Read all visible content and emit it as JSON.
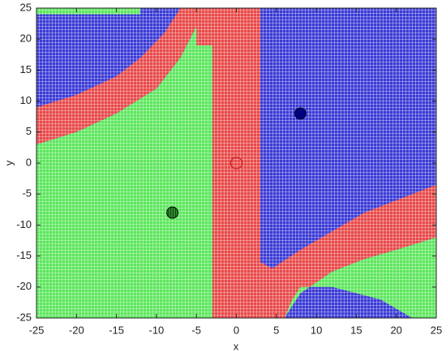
{
  "chart_data": {
    "type": "scatter",
    "xlabel": "x",
    "ylabel": "y",
    "xlim": [
      -25,
      25
    ],
    "ylim": [
      -25,
      25
    ],
    "xticks": [
      -25,
      -20,
      -15,
      -10,
      -5,
      0,
      5,
      10,
      15,
      20,
      25
    ],
    "yticks": [
      -25,
      -20,
      -15,
      -10,
      -5,
      0,
      5,
      10,
      15,
      20,
      25
    ],
    "regions": [
      {
        "color": "#3a3ad6",
        "x": [
          -25,
          25,
          25,
          -25
        ],
        "y": [
          -25,
          -25,
          25,
          25
        ]
      },
      {
        "color": "#e84848",
        "x": [
          -25,
          -20,
          -15,
          -12,
          -9,
          -7,
          -4,
          -5,
          -7,
          -10,
          -15,
          -20,
          -25
        ],
        "y": [
          9,
          11,
          14,
          17,
          21,
          25,
          25,
          22,
          17,
          12,
          8,
          5,
          3
        ]
      },
      {
        "color": "#5ce65c",
        "x": [
          -25,
          -20,
          -15,
          -10,
          -7,
          -5,
          -4,
          -3,
          -3,
          -25
        ],
        "y": [
          3,
          5,
          8,
          12,
          17,
          22,
          25,
          25,
          -25,
          -25
        ]
      },
      {
        "color": "#5ce65c",
        "x": [
          -25,
          -12,
          -12,
          -25
        ],
        "y": [
          24,
          24,
          25,
          25
        ]
      },
      {
        "color": "#e84848",
        "x": [
          -3,
          3,
          3,
          -3
        ],
        "y": [
          -25,
          -25,
          25,
          25
        ]
      },
      {
        "color": "#e84848",
        "x": [
          -5,
          -3,
          -3,
          -5
        ],
        "y": [
          19,
          19,
          25,
          25
        ]
      },
      {
        "color": "#e84848",
        "x": [
          3,
          4.5,
          8,
          12,
          16,
          20,
          25,
          25,
          20,
          16,
          12,
          8,
          6,
          3
        ],
        "y": [
          -16,
          -17,
          -14,
          -11,
          -8,
          -6,
          -3.5,
          -12,
          -14,
          -15.5,
          -17.5,
          -21,
          -25,
          -25
        ]
      },
      {
        "color": "#5ce65c",
        "x": [
          6,
          8,
          12,
          16,
          20,
          25,
          25,
          22,
          18,
          12,
          8,
          7
        ],
        "y": [
          -25,
          -21,
          -17.5,
          -15.5,
          -14,
          -12,
          -25,
          -25,
          -22,
          -20,
          -20,
          -22
        ]
      }
    ],
    "series": [
      {
        "color": "#cc2222",
        "marker": "open",
        "x": [
          0
        ],
        "y": [
          0
        ]
      },
      {
        "color": "#000080",
        "marker": "filled",
        "x": [
          8
        ],
        "y": [
          8
        ]
      },
      {
        "color": "#2a8a2a",
        "marker": "hatched",
        "x": [
          -8
        ],
        "y": [
          -8
        ]
      }
    ]
  }
}
